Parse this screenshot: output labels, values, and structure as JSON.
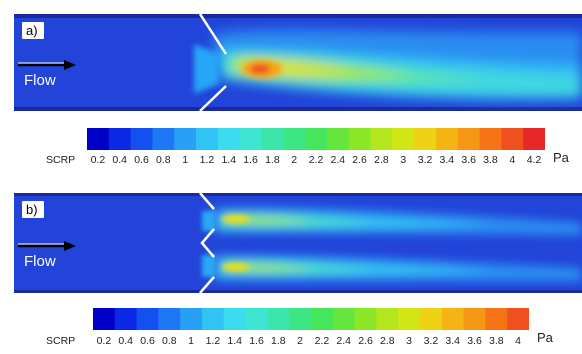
{
  "panels": [
    {
      "tag": "a)",
      "flow_label": "Flow"
    },
    {
      "tag": "b)",
      "flow_label": "Flow"
    }
  ],
  "colorbars": [
    {
      "name": "SCRP",
      "unit": "Pa",
      "ticks": [
        "0.2",
        "0.4",
        "0.6",
        "0.8",
        "1",
        "1.2",
        "1.4",
        "1.6",
        "1.8",
        "2",
        "2.2",
        "2.4",
        "2.6",
        "2.8",
        "3",
        "3.2",
        "3.4",
        "3.6",
        "3.8",
        "4",
        "4.2"
      ],
      "colors": [
        "#0000c8",
        "#0a28e6",
        "#1450f0",
        "#1e78f5",
        "#28a0f8",
        "#32c3f5",
        "#3cdcf0",
        "#3ce6d2",
        "#3ce6aa",
        "#3ce682",
        "#46e65a",
        "#64e63c",
        "#8ce628",
        "#b4e61e",
        "#d2e614",
        "#f0d214",
        "#f5b414",
        "#f59614",
        "#f57314",
        "#f0501e",
        "#e62828"
      ]
    },
    {
      "name": "SCRP",
      "unit": "Pa",
      "ticks": [
        "0.2",
        "0.4",
        "0.6",
        "0.8",
        "1",
        "1.2",
        "1.4",
        "1.6",
        "1.8",
        "2",
        "2.2",
        "2.4",
        "2.6",
        "2.8",
        "3",
        "3.2",
        "3.4",
        "3.6",
        "3.8",
        "4"
      ],
      "colors": [
        "#0000c8",
        "#0a28e6",
        "#1450f0",
        "#1e78f5",
        "#28a0f8",
        "#32c3f5",
        "#3cdcf0",
        "#3ce6d2",
        "#3ce6aa",
        "#3ce682",
        "#46e65a",
        "#64e63c",
        "#8ce628",
        "#b4e61e",
        "#d2e614",
        "#f0d214",
        "#f5b414",
        "#f59614",
        "#f57314",
        "#f0501e"
      ]
    }
  ]
}
